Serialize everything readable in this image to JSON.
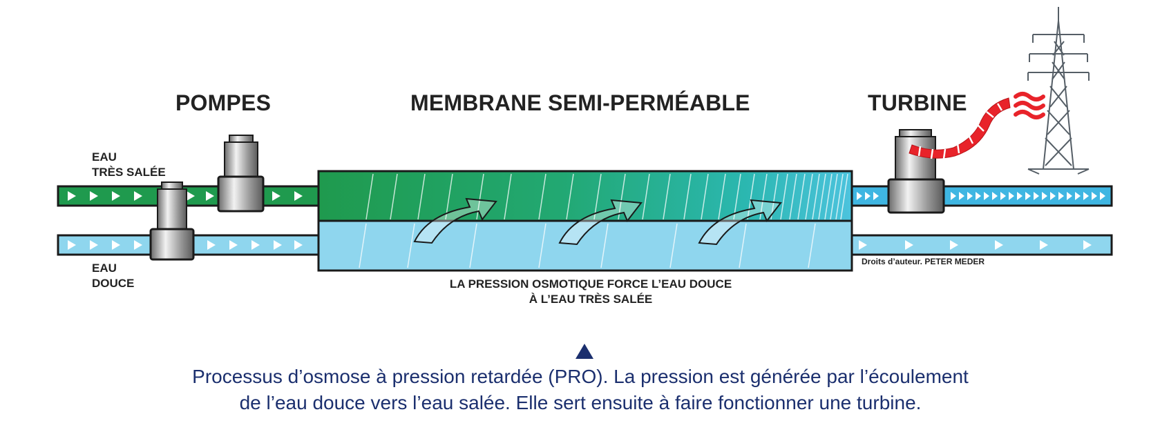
{
  "labels": {
    "pumps": "POMPES",
    "membrane": "MEMBRANE SEMI-PERMÉABLE",
    "turbine": "TURBINE",
    "salt_water_line1": "EAU",
    "salt_water_line2": "TRÈS SALÉE",
    "fresh_water_line1": "EAU",
    "fresh_water_line2": "DOUCE",
    "osmotic_line1": "LA PRESSION OSMOTIQUE FORCE L’EAU DOUCE",
    "osmotic_line2": "À L’EAU TRÈS SALÉE",
    "copyright": "Droits d’auteur. PETER MEDER"
  },
  "caption": {
    "line1": "Processus d’osmose à pression retardée (PRO). La pression est générée par l’écoulement",
    "line2": "de l’eau douce vers l’eau salée. Elle sert ensuite à faire fonctionner une turbine."
  },
  "colors": {
    "salt_pipe": "#1f9a4e",
    "fresh_pipe": "#8fd6ee",
    "turbine_outflow": "#3fb6e2",
    "caption_text": "#1b2f6e",
    "heat_waves": "#e8232a",
    "outline": "#1a1a1a"
  }
}
